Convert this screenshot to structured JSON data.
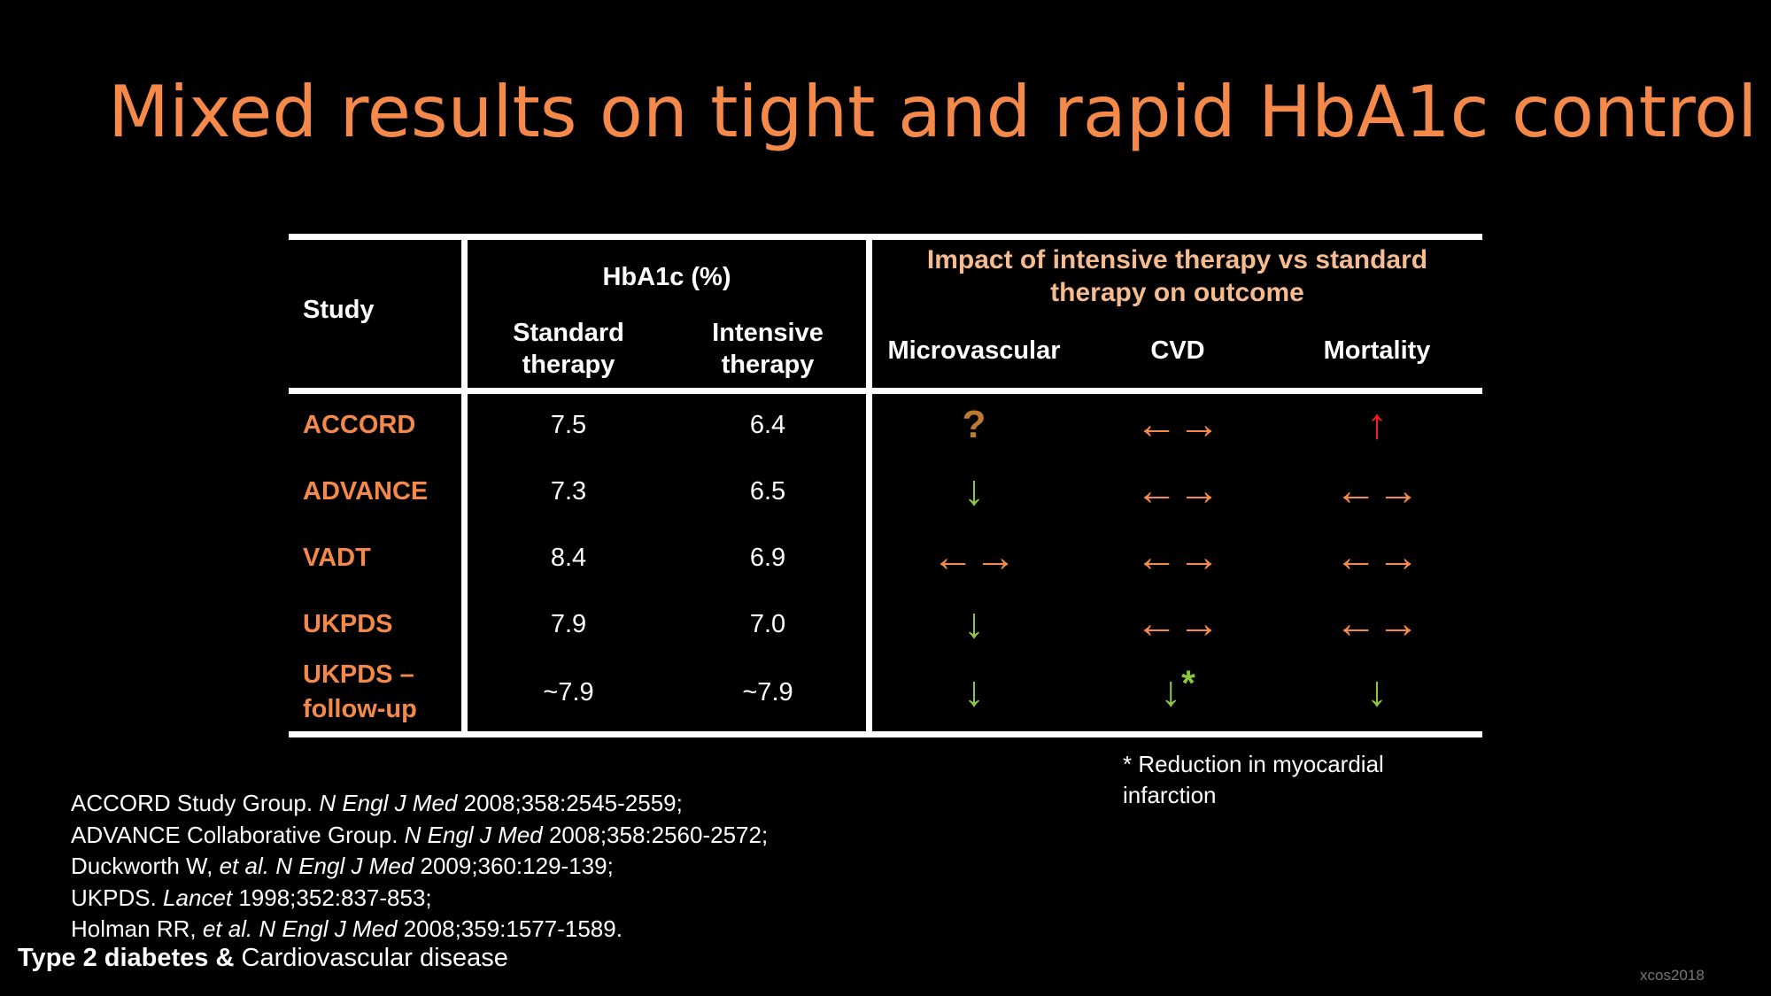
{
  "slide": {
    "title": "Mixed results on tight and rapid HbA1c control",
    "footer_bold": "Type 2 diabetes &",
    "footer_rest": " Cardiovascular disease",
    "code": "xcos2018"
  },
  "table": {
    "headers": {
      "study": "Study",
      "hba1c": "HbA1c (%)",
      "standard_1": "Standard",
      "standard_2": "therapy",
      "intensive_1": "Intensive",
      "intensive_2": "therapy",
      "impact_1": "Impact of intensive therapy vs standard",
      "impact_2": "therapy on outcome",
      "microvascular": "Microvascular",
      "cvd": "CVD",
      "mortality": "Mortality"
    },
    "rows": [
      {
        "study": "ACCORD",
        "standard": "7.5",
        "intensive": "6.4",
        "micro": "?",
        "cvd": "←→",
        "mortality": "↑"
      },
      {
        "study": "ADVANCE",
        "standard": "7.3",
        "intensive": "6.5",
        "micro": "↓",
        "cvd": "←→",
        "mortality": "←→"
      },
      {
        "study": "VADT",
        "standard": "8.4",
        "intensive": "6.9",
        "micro": "←→",
        "cvd": "←→",
        "mortality": "←→"
      },
      {
        "study": "UKPDS",
        "standard": "7.9",
        "intensive": "7.0",
        "micro": "↓",
        "cvd": "←→",
        "mortality": "←→"
      },
      {
        "study_1": "UKPDS –",
        "study_2": "follow-up",
        "standard": "~7.9",
        "intensive": "~7.9",
        "micro": "↓",
        "cvd": "↓",
        "cvd_mark": "*",
        "mortality": "↓"
      }
    ]
  },
  "footnote": {
    "line1": "* Reduction in myocardial",
    "line2": "infarction"
  },
  "references": [
    {
      "a": "ACCORD Study Group. ",
      "journal": "N Engl J Med",
      "b": " 2008;358:2545-2559;"
    },
    {
      "a": "ADVANCE Collaborative Group. ",
      "journal": "N Engl J Med",
      "b": " 2008;358:2560-2572;"
    },
    {
      "a": "Duckworth W, ",
      "etal": "et al.",
      "journal": " N Engl J Med",
      "b": " 2009;360:129-139;"
    },
    {
      "a": "UKPDS. ",
      "journal": "Lancet",
      "b": " 1998;352:837-853;"
    },
    {
      "a": "Holman RR, ",
      "etal": "et al.",
      "journal": " N Engl J Med",
      "b": " 2008;359:1577-1589."
    }
  ],
  "colors": {
    "title": "#f4894a",
    "study": "#f4894a",
    "impact_header": "#f6bb8e",
    "neutral_arrow": "#f4894a",
    "down_arrow": "#8cc640",
    "up_arrow": "#ff1a1a",
    "question": "#c07a2e"
  },
  "icons": {
    "question": "question-mark-icon",
    "up": "arrow-up-icon",
    "down": "arrow-down-icon",
    "neutral": "double-arrow-icon"
  }
}
